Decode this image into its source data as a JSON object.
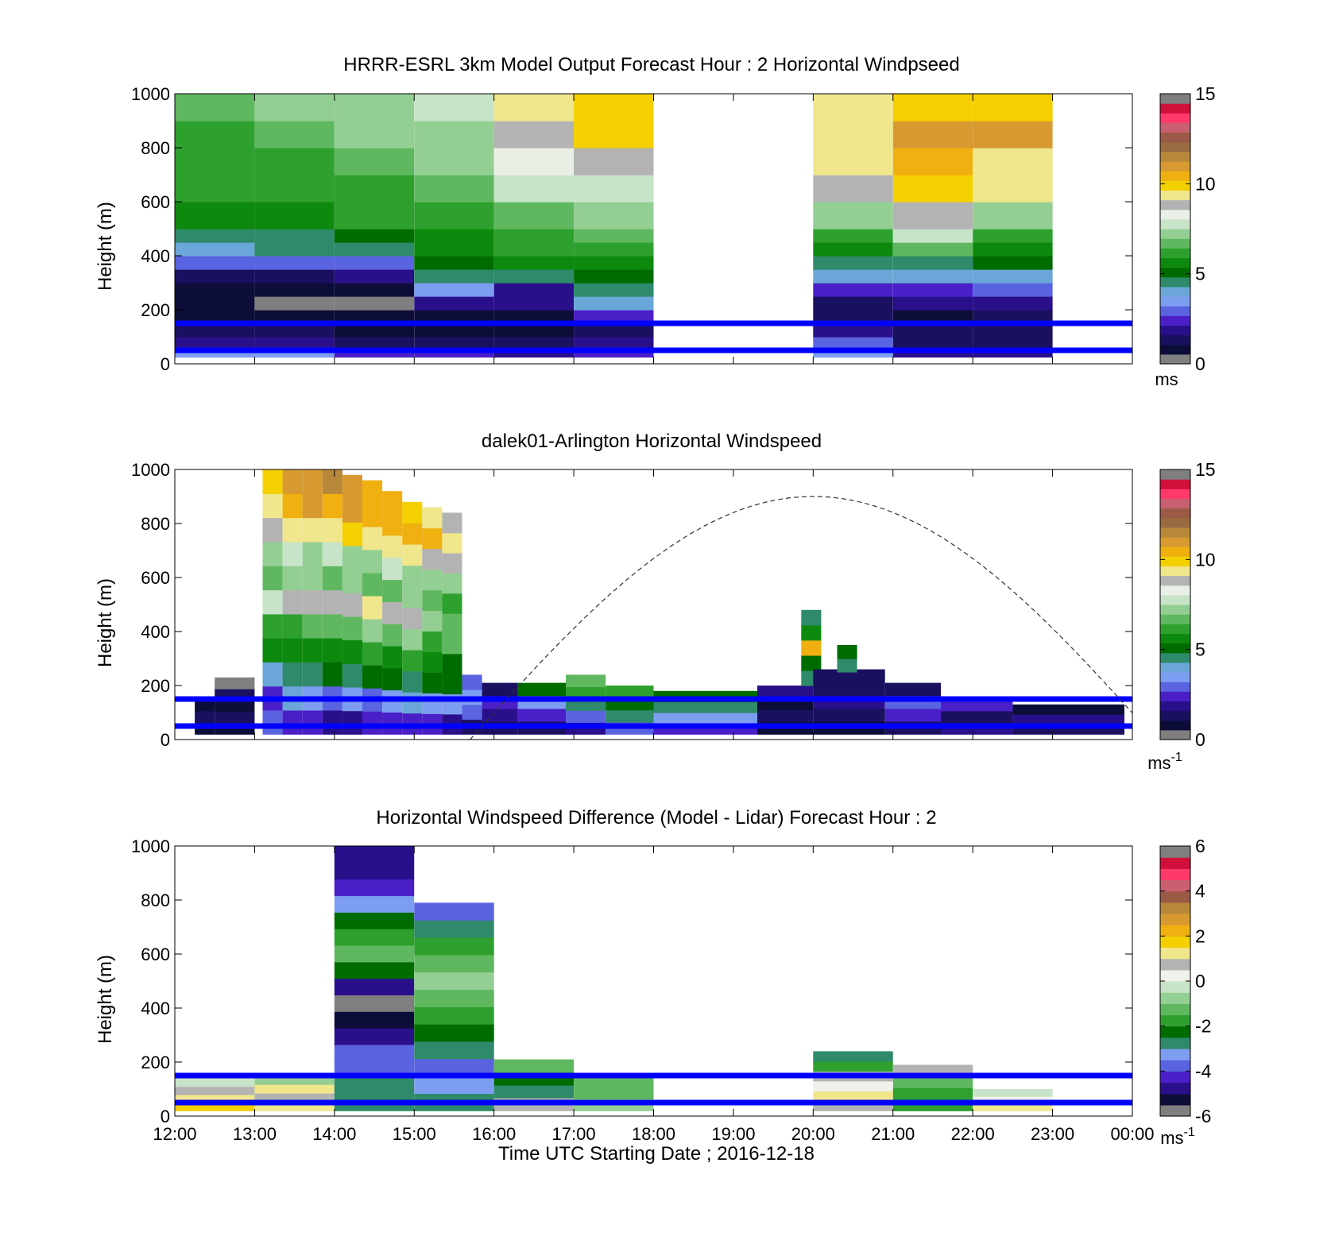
{
  "palettes": {
    "speed": [
      "#7f7f7f",
      "#0d0d3a",
      "#1a1060",
      "#2a0f8a",
      "#4a1fc8",
      "#5a63e0",
      "#7d9ef0",
      "#6aa7d8",
      "#2e8a6a",
      "#006c00",
      "#0d8a0d",
      "#2ea02e",
      "#5fb85f",
      "#93cf93",
      "#c8e4c8",
      "#e9efe4",
      "#b3b3b3",
      "#f0e68c",
      "#f5d000",
      "#f0b010",
      "#d89a30",
      "#b8883a",
      "#9a6a40",
      "#9a5a45",
      "#c86070",
      "#ff3a6a",
      "#d0103a",
      "#7f7f7f"
    ],
    "diff": [
      "#7f7f7f",
      "#0d0d3a",
      "#2a0f8a",
      "#4a1fc8",
      "#5a63e0",
      "#7d9ef0",
      "#2e8a6a",
      "#006c00",
      "#2ea02e",
      "#5fb85f",
      "#93cf93",
      "#c8e4c8",
      "#eef2ea",
      "#b3b3b3",
      "#f0e68c",
      "#f5d000",
      "#f0b010",
      "#d89a30",
      "#b8883a",
      "#9a5a45",
      "#c86070",
      "#ff3a6a",
      "#d0103a",
      "#7f7f7f"
    ]
  },
  "xaxis": {
    "ticks": [
      "12:00",
      "13:00",
      "14:00",
      "15:00",
      "16:00",
      "17:00",
      "18:00",
      "19:00",
      "20:00",
      "21:00",
      "22:00",
      "23:00",
      "00:00"
    ],
    "label": "Time UTC  Starting Date ; 2016-12-18"
  },
  "chart_data": [
    {
      "type": "heatmap",
      "title": "HRRR-ESRL 3km Model Output   Forecast Hour : 2 Horizontal Windpseed",
      "ylabel": "Height (m)",
      "ylim": [
        0,
        1000
      ],
      "yticks": [
        "0",
        "200",
        "400",
        "600",
        "800",
        "1000"
      ],
      "xlim_hours": [
        12,
        24
      ],
      "colorbar": {
        "range": [
          0,
          15
        ],
        "ticks": [
          "0",
          "5",
          "10",
          "15"
        ],
        "unit": "ms",
        "unit_sup": "",
        "palette": "speed"
      },
      "bins_bottom_m": [
        25,
        50,
        100,
        150,
        200,
        250,
        300,
        350,
        400,
        450,
        500,
        600,
        700,
        800,
        900
      ],
      "bins_top_m": 1000,
      "columns": [
        {
          "t": 12,
          "values": [
            3.5,
            2.0,
            1.2,
            0.6,
            0.6,
            0.6,
            1.5,
            2.8,
            3.8,
            4.6,
            5.8,
            6.0,
            6.2,
            6.4,
            6.6
          ]
        },
        {
          "t": 13,
          "values": [
            3.5,
            2.0,
            1.2,
            0.6,
            0.5,
            0.6,
            1.5,
            2.8,
            4.3,
            4.6,
            5.8,
            6.2,
            6.4,
            6.8,
            7.0
          ]
        },
        {
          "t": 14,
          "values": [
            2.5,
            1.5,
            1.0,
            1.0,
            0.0,
            0.8,
            2.0,
            3.0,
            4.8,
            5.2,
            6.0,
            6.4,
            6.8,
            7.2,
            7.4
          ]
        },
        {
          "t": 15,
          "values": [
            2.5,
            1.5,
            1.0,
            0.8,
            1.8,
            3.3,
            4.6,
            5.0,
            5.4,
            5.8,
            6.2,
            6.6,
            7.0,
            7.4,
            7.6
          ]
        },
        {
          "t": 16,
          "values": [
            2.0,
            1.5,
            1.0,
            0.8,
            1.8,
            2.0,
            4.4,
            5.6,
            6.0,
            6.4,
            6.8,
            7.8,
            8.5,
            9.0,
            9.3
          ]
        },
        {
          "t": 17,
          "values": [
            2.5,
            2.0,
            1.5,
            2.5,
            3.8,
            4.5,
            5.2,
            5.6,
            6.2,
            6.8,
            7.2,
            7.5,
            9.0,
            9.8,
            9.8
          ]
        },
        {
          "t": 20,
          "values": [
            3.5,
            3.0,
            2.0,
            1.5,
            1.5,
            2.5,
            4.0,
            4.6,
            5.6,
            6.2,
            7.4,
            9.0,
            9.2,
            9.2,
            9.2
          ]
        },
        {
          "t": 21,
          "values": [
            2.0,
            1.5,
            1.2,
            1.0,
            2.0,
            2.6,
            4.2,
            4.6,
            6.6,
            7.7,
            8.8,
            9.7,
            10.5,
            11.0,
            9.9
          ]
        },
        {
          "t": 22,
          "values": [
            2.0,
            1.6,
            1.2,
            1.5,
            2.0,
            3.0,
            4.2,
            5.2,
            5.6,
            5.9,
            7.2,
            9.3,
            9.6,
            10.8,
            9.9
          ]
        }
      ],
      "reference_lines_m": [
        50,
        150
      ]
    },
    {
      "type": "heatmap",
      "title": "dalek01-Arlington  Horizontal Windspeed",
      "ylabel": "Height (m)",
      "ylim": [
        0,
        1000
      ],
      "yticks": [
        "0",
        "200",
        "400",
        "600",
        "800",
        "1000"
      ],
      "xlim_hours": [
        12,
        24
      ],
      "colorbar": {
        "range": [
          0,
          15
        ],
        "ticks": [
          "0",
          "5",
          "10",
          "15"
        ],
        "unit": "ms",
        "unit_sup": "-1",
        "palette": "speed"
      },
      "columns": [
        {
          "t0": 12.25,
          "t1": 12.5,
          "h0": 20,
          "h1": 150,
          "values": [
            0.8,
            1.2,
            0.6
          ]
        },
        {
          "t0": 12.5,
          "t1": 13.0,
          "h0": 20,
          "h1": 230,
          "values": [
            0.7,
            1.5,
            0.9,
            1.2,
            0.5
          ]
        },
        {
          "t0": 13.1,
          "t1": 13.35,
          "h0": 20,
          "h1": 1000,
          "values": [
            3.2,
            2.5,
            4.0,
            5.4,
            6.2,
            7.5,
            6.8,
            7.4,
            8.8,
            9.5,
            9.8
          ]
        },
        {
          "t0": 13.35,
          "t1": 13.6,
          "h0": 20,
          "h1": 1000,
          "values": [
            2.6,
            3.8,
            4.5,
            5.8,
            6.4,
            8.9,
            7.2,
            7.9,
            9.2,
            10.5,
            11.0
          ]
        },
        {
          "t0": 13.6,
          "t1": 13.85,
          "h0": 20,
          "h1": 1000,
          "values": [
            2.2,
            3.6,
            4.8,
            5.4,
            6.8,
            8.9,
            7.0,
            7.4,
            9.6,
            10.8,
            11.2
          ]
        },
        {
          "t0": 13.85,
          "t1": 14.1,
          "h0": 20,
          "h1": 1000,
          "values": [
            2.0,
            3.2,
            5.0,
            5.6,
            6.6,
            9.1,
            6.8,
            7.6,
            9.4,
            10.6,
            11.4
          ]
        },
        {
          "t0": 14.1,
          "t1": 14.35,
          "h0": 20,
          "h1": 980,
          "values": [
            1.8,
            3.5,
            4.6,
            5.8,
            6.9,
            8.9,
            7.0,
            7.2,
            9.8,
            10.9,
            11.0
          ]
        },
        {
          "t0": 14.35,
          "t1": 14.6,
          "h0": 20,
          "h1": 960,
          "values": [
            2.4,
            3.1,
            5.2,
            6.0,
            7.1,
            9.2,
            6.6,
            7.0,
            9.5,
            10.7,
            10.6
          ]
        },
        {
          "t0": 14.6,
          "t1": 14.85,
          "h0": 20,
          "h1": 920,
          "values": [
            2.2,
            3.4,
            5.0,
            5.6,
            6.8,
            9.0,
            6.9,
            7.5,
            9.3,
            10.4,
            10.2
          ]
        },
        {
          "t0": 14.85,
          "t1": 15.1,
          "h0": 20,
          "h1": 880,
          "values": [
            2.6,
            3.8,
            4.8,
            5.9,
            7.0,
            8.9,
            7.1,
            7.3,
            9.6,
            10.6,
            9.8
          ]
        },
        {
          "t0": 15.1,
          "t1": 15.35,
          "h0": 20,
          "h1": 860,
          "values": [
            2.3,
            3.6,
            5.1,
            5.4,
            6.4,
            7.2,
            6.8,
            7.4,
            9.1,
            10.2,
            9.6
          ]
        },
        {
          "t0": 15.35,
          "t1": 15.6,
          "h0": 20,
          "h1": 840,
          "values": [
            2.1,
            3.3,
            4.9,
            5.2,
            6.6,
            6.8,
            6.2,
            7.0,
            8.8,
            9.4,
            9.0
          ]
        },
        {
          "t0": 15.6,
          "t1": 15.85,
          "h0": 20,
          "h1": 240,
          "values": [
            1.6,
            2.8,
            3.6,
            3.2
          ]
        },
        {
          "t0": 15.85,
          "t1": 16.3,
          "h0": 20,
          "h1": 210,
          "values": [
            1.2,
            1.8,
            2.2,
            1.5
          ]
        },
        {
          "t0": 16.3,
          "t1": 16.9,
          "h0": 20,
          "h1": 210,
          "values": [
            1.4,
            2.6,
            3.4,
            5.2
          ]
        },
        {
          "t0": 16.9,
          "t1": 17.4,
          "h0": 20,
          "h1": 240,
          "values": [
            2.0,
            3.0,
            4.6,
            6.0,
            6.8
          ]
        },
        {
          "t0": 17.4,
          "t1": 18.0,
          "h0": 20,
          "h1": 200,
          "values": [
            3.0,
            4.4,
            5.2,
            6.4
          ]
        },
        {
          "t0": 18.0,
          "t1": 19.3,
          "h0": 20,
          "h1": 180,
          "values": [
            2.6,
            3.4,
            4.4,
            5.0
          ]
        },
        {
          "t0": 19.3,
          "t1": 20.0,
          "h0": 20,
          "h1": 200,
          "values": [
            1.0,
            1.4,
            0.9,
            1.8
          ]
        },
        {
          "t0": 19.85,
          "t1": 20.1,
          "h0": 200,
          "h1": 480,
          "values": [
            4.5,
            5.0,
            10.4,
            5.4,
            4.6
          ]
        },
        {
          "t0": 20.0,
          "t1": 20.9,
          "h0": 20,
          "h1": 260,
          "values": [
            0.8,
            1.2,
            2.0,
            1.5,
            1.1
          ]
        },
        {
          "t0": 20.3,
          "t1": 20.55,
          "h0": 250,
          "h1": 350,
          "values": [
            4.8,
            5.2
          ]
        },
        {
          "t0": 20.9,
          "t1": 21.6,
          "h0": 20,
          "h1": 210,
          "values": [
            1.5,
            2.2,
            3.0,
            1.6
          ]
        },
        {
          "t0": 21.6,
          "t1": 22.5,
          "h0": 20,
          "h1": 150,
          "values": [
            2.0,
            1.6,
            2.6
          ]
        },
        {
          "t0": 22.5,
          "t1": 23.9,
          "h0": 20,
          "h1": 130,
          "values": [
            1.2,
            1.8,
            1.0
          ]
        }
      ],
      "reference_lines_m": [
        50,
        150
      ],
      "dashed_curve": {
        "t_start": 15.7,
        "t_peak": 20.0,
        "t_end": 24.0,
        "h_peak_m": 900
      }
    },
    {
      "type": "heatmap",
      "title": "Horizontal Windspeed Difference (Model - Lidar) Forecast Hour : 2",
      "ylabel": "Height (m)",
      "ylim": [
        0,
        1000
      ],
      "yticks": [
        "0",
        "200",
        "400",
        "600",
        "800",
        "1000"
      ],
      "xlim_hours": [
        12,
        24
      ],
      "colorbar": {
        "range": [
          -6,
          6
        ],
        "ticks": [
          "-6",
          "-4",
          "-2",
          "0",
          "2",
          "4",
          "6"
        ],
        "unit": "ms",
        "unit_sup": "-1",
        "palette": "diff"
      },
      "columns": [
        {
          "t0": 12,
          "t1": 13,
          "h0": 20,
          "h1": 140,
          "values": [
            1.5,
            1.0,
            0.5,
            -0.3
          ]
        },
        {
          "t0": 13,
          "t1": 14,
          "h0": 20,
          "h1": 150,
          "values": [
            1.0,
            0.8,
            1.2,
            -1.0
          ]
        },
        {
          "t0": 14,
          "t1": 15,
          "h0": 20,
          "h1": 1000,
          "values": [
            -2.6,
            -3.0,
            -4.0,
            -3.8,
            -4.6,
            -5.2,
            -5.6,
            -5.0,
            -2.2,
            -1.4,
            -1.6,
            -2.4,
            -3.4,
            -4.2,
            -4.8,
            -5.0
          ]
        },
        {
          "t0": 15,
          "t1": 16,
          "h0": 20,
          "h1": 790,
          "values": [
            -2.6,
            -3.2,
            -3.6,
            -2.8,
            -2.4,
            -1.8,
            -1.4,
            -1.0,
            -1.2,
            -1.6,
            -2.8,
            -4.0
          ]
        },
        {
          "t0": 16,
          "t1": 17,
          "h0": 20,
          "h1": 210,
          "values": [
            0.8,
            -2.6,
            -2.2,
            -1.4
          ]
        },
        {
          "t0": 17,
          "t1": 18,
          "h0": 20,
          "h1": 150,
          "values": [
            -0.8,
            -1.2,
            -1.4
          ]
        },
        {
          "t0": 20,
          "t1": 21,
          "h0": 20,
          "h1": 240,
          "values": [
            0.8,
            1.2,
            0.3,
            0.6,
            -1.6,
            -2.6
          ]
        },
        {
          "t0": 21,
          "t1": 22,
          "h0": 20,
          "h1": 190,
          "values": [
            -2.0,
            -1.6,
            -1.4,
            0.9
          ]
        },
        {
          "t0": 22,
          "t1": 23,
          "h0": 20,
          "h1": 100,
          "values": [
            1.0,
            0.4,
            -0.2
          ]
        }
      ],
      "reference_lines_m": [
        50,
        150
      ]
    }
  ]
}
